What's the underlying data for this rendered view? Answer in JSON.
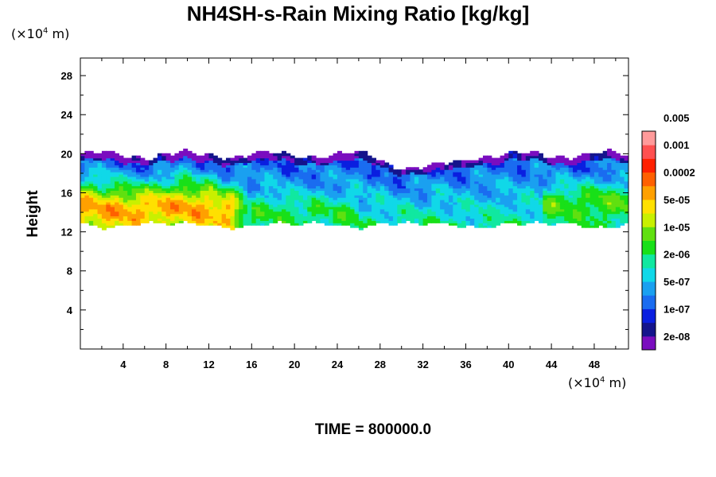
{
  "chart_data": {
    "type": "heatmap",
    "title": "NH4SH-s-Rain Mixing Ratio [kg/kg]",
    "ylabel": "Height",
    "x_unit": "(×10",
    "x_unit_exp": "4",
    "x_unit_tail": " m)",
    "y_unit": "(×10",
    "y_unit_exp": "4",
    "y_unit_tail": " m)",
    "xlim": [
      0,
      51.2
    ],
    "ylim": [
      0,
      29.8
    ],
    "x_ticks": [
      4,
      8,
      12,
      16,
      20,
      24,
      28,
      32,
      36,
      40,
      44,
      48
    ],
    "y_ticks": [
      4,
      8,
      12,
      16,
      20,
      24,
      28
    ],
    "colorbar": {
      "levels": [
        "2e-08",
        "1e-07",
        "5e-07",
        "2e-06",
        "1e-05",
        "5e-05",
        "0.0002",
        "0.001",
        "0.005"
      ],
      "colors": [
        "#7a0dbf",
        "#14148c",
        "#0a1fe0",
        "#1a6cf0",
        "#1aa0f0",
        "#10d8e8",
        "#10e8a0",
        "#18e018",
        "#60e010",
        "#c8f000",
        "#ffe000",
        "#ffa000",
        "#ff6000",
        "#ff2000",
        "#ff5050",
        "#ff9a9a"
      ]
    },
    "field_summary": {
      "cloud_bottom_height": [
        12,
        13
      ],
      "cloud_top_height": [
        19.5,
        20.3
      ],
      "max_region_x": [
        0,
        16
      ],
      "max_value_class": "0.001"
    },
    "footer": "TIME = 800000.0"
  }
}
